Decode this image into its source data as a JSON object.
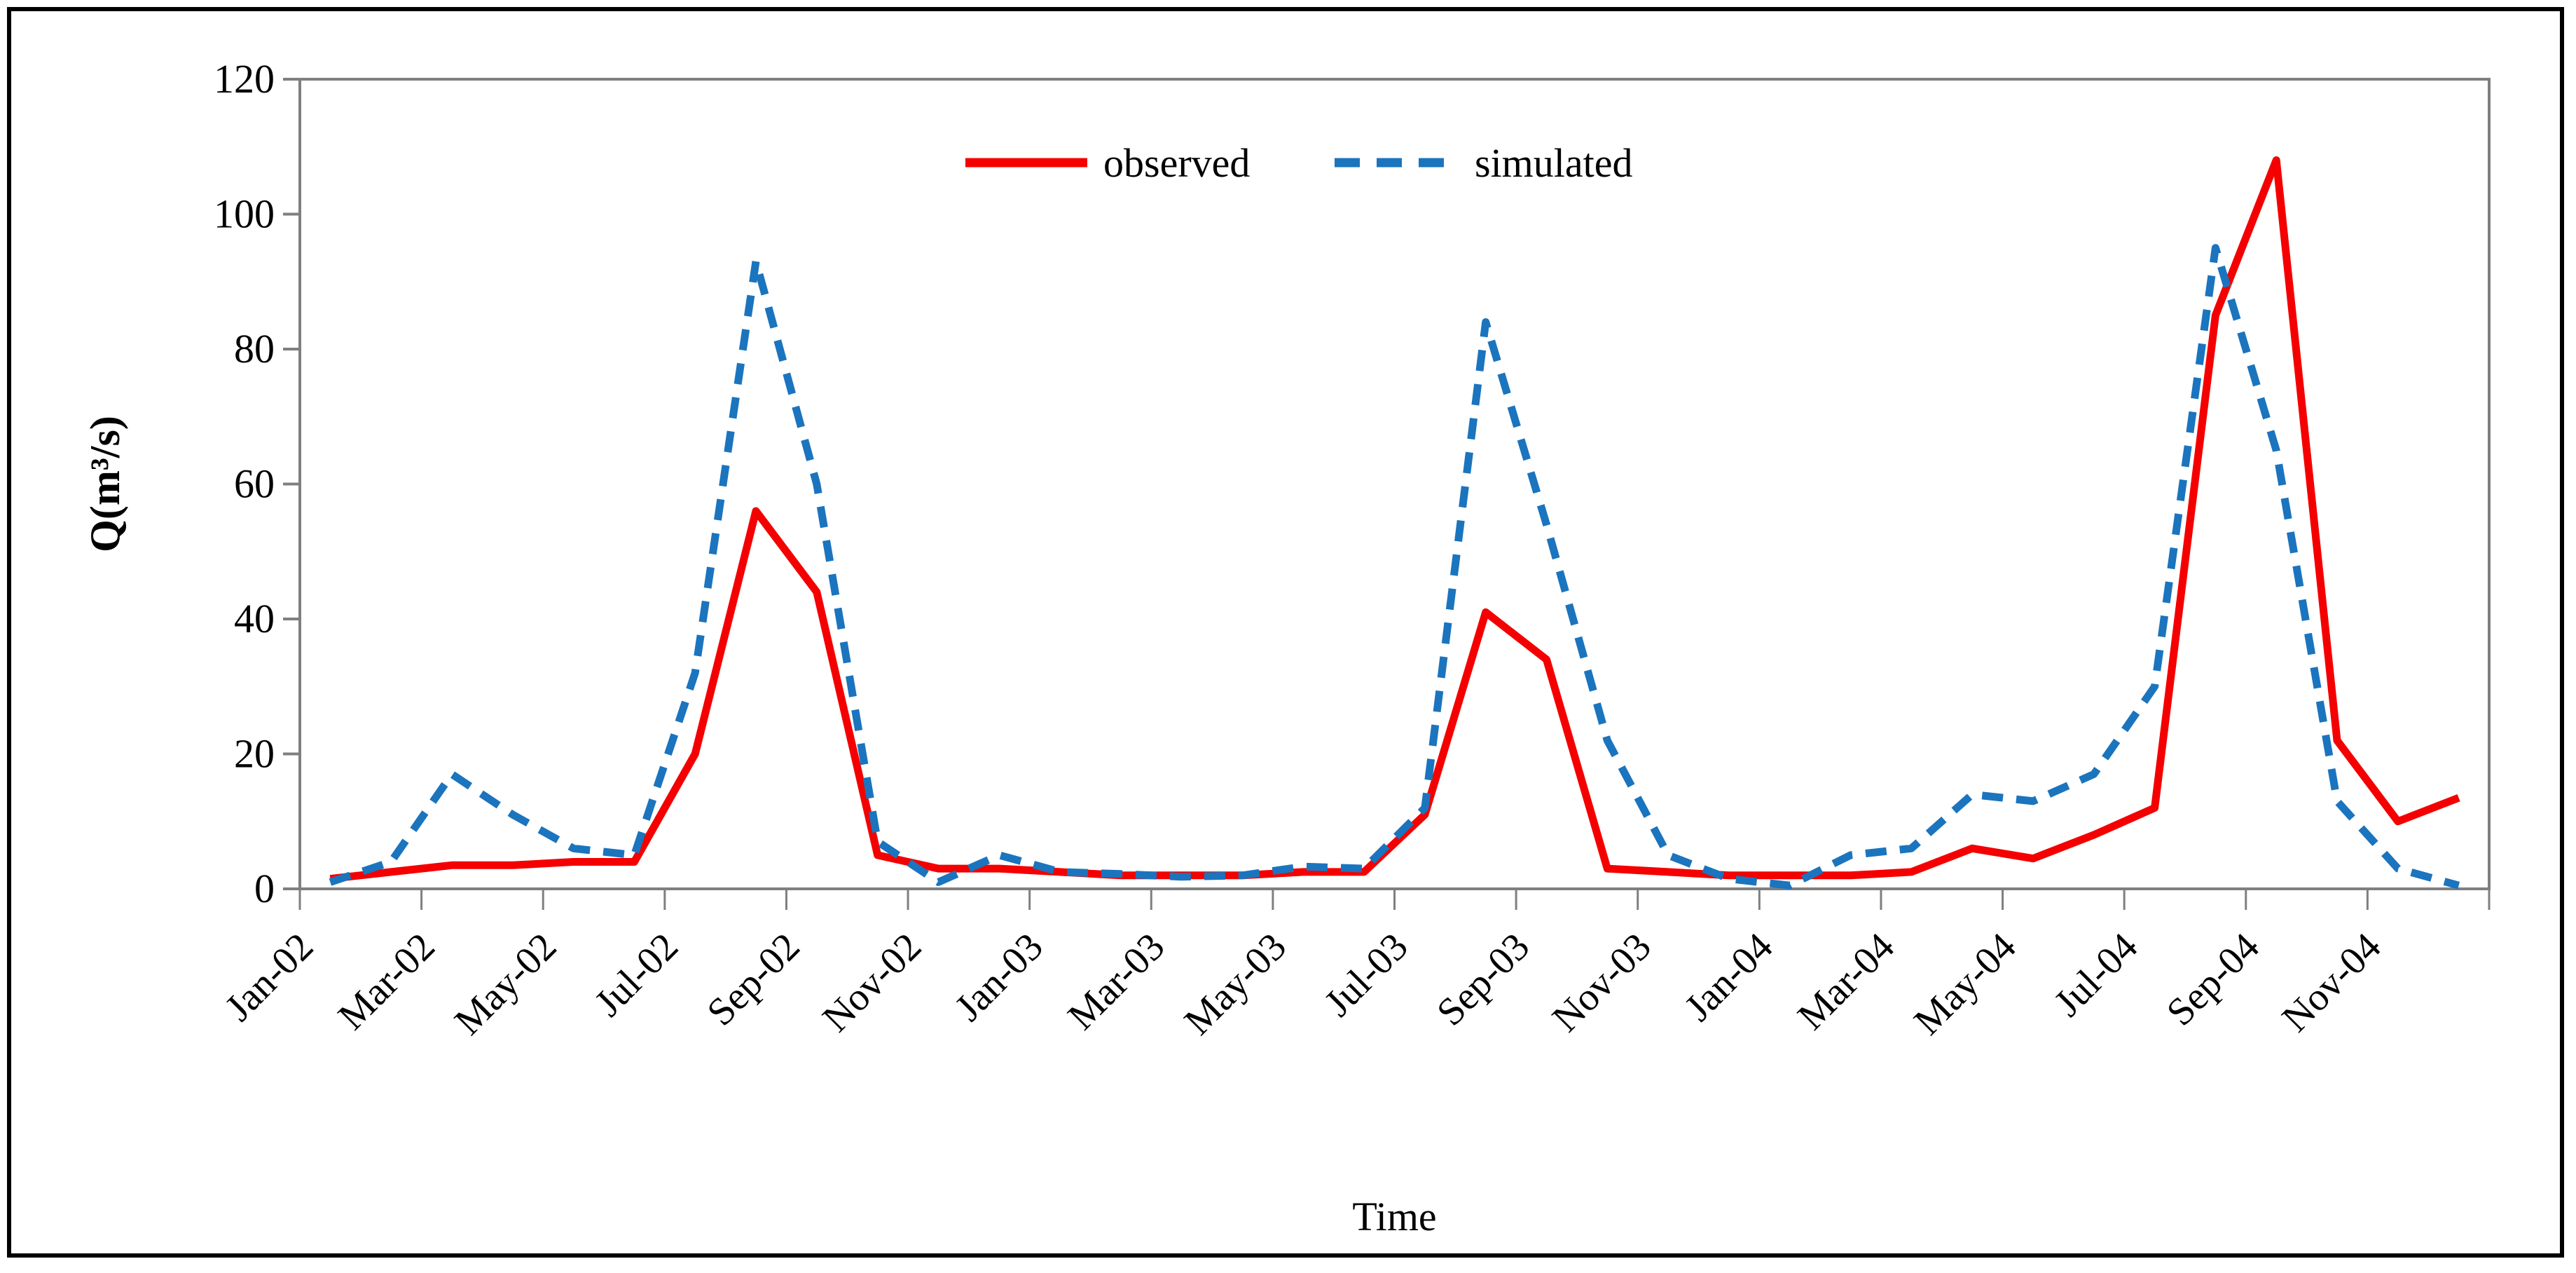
{
  "figure": {
    "background_color": "#ffffff",
    "border_color": "#000000",
    "frame_color": "#7f7f7f",
    "tick_color": "#7f7f7f"
  },
  "chart_data": {
    "type": "line",
    "title": "",
    "xlabel": "Time",
    "ylabel": "Q(m³/s)",
    "ylim": [
      0,
      120
    ],
    "yticks": [
      0,
      20,
      40,
      60,
      80,
      100,
      120
    ],
    "grid": false,
    "legend_position": "top-center",
    "categories": [
      "Jan-02",
      "Feb-02",
      "Mar-02",
      "Apr-02",
      "May-02",
      "Jun-02",
      "Jul-02",
      "Aug-02",
      "Sep-02",
      "Oct-02",
      "Nov-02",
      "Dec-02",
      "Jan-03",
      "Feb-03",
      "Mar-03",
      "Apr-03",
      "May-03",
      "Jun-03",
      "Jul-03",
      "Aug-03",
      "Sep-03",
      "Oct-03",
      "Nov-03",
      "Dec-03",
      "Jan-04",
      "Feb-04",
      "Mar-04",
      "Apr-04",
      "May-04",
      "Jun-04",
      "Jul-04",
      "Aug-04",
      "Sep-04",
      "Oct-04",
      "Nov-04",
      "Dec-04"
    ],
    "xtick_labels": [
      "Jan-02",
      "Mar-02",
      "May-02",
      "Jul-02",
      "Sep-02",
      "Nov-02",
      "Jan-03",
      "Mar-03",
      "May-03",
      "Jul-03",
      "Sep-03",
      "Nov-03",
      "Jan-04",
      "Mar-04",
      "May-04",
      "Jul-04",
      "Sep-04",
      "Nov-04"
    ],
    "series": [
      {
        "name": "observed",
        "color": "#f40000",
        "style": "solid",
        "values": [
          1.5,
          2.5,
          3.5,
          3.5,
          4,
          4,
          20,
          56,
          44,
          5,
          3,
          3,
          2.5,
          2,
          2,
          2,
          2.5,
          2.5,
          11,
          41,
          34,
          3,
          2.5,
          2,
          2,
          2,
          2.5,
          6,
          4.5,
          8,
          12,
          85,
          108,
          22,
          10,
          13.5
        ]
      },
      {
        "name": "simulated",
        "color": "#1b74be",
        "style": "dashed",
        "values": [
          1,
          4,
          17,
          11,
          6,
          5,
          32,
          93,
          60,
          7,
          1,
          5,
          2.5,
          2.2,
          1.8,
          2,
          3.3,
          3,
          12,
          84,
          54,
          22,
          5,
          1.5,
          0.5,
          5,
          6,
          14,
          13,
          17,
          30,
          95,
          65,
          13,
          3,
          0.5
        ]
      }
    ]
  }
}
